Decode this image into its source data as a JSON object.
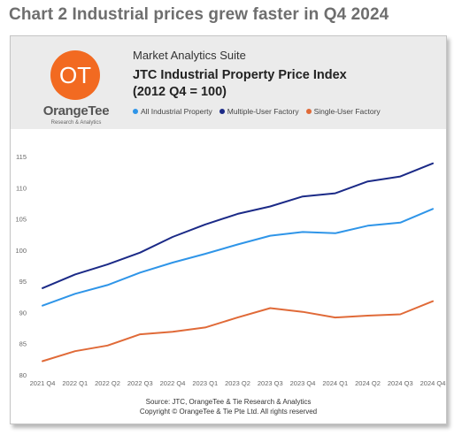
{
  "page_title": "Chart 2 Industrial prices grew faster in Q4 2024",
  "header": {
    "suite_name": "Market Analytics Suite",
    "logo": {
      "mark": "OT",
      "name": "OrangeTee",
      "tagline": "Research & Analytics"
    }
  },
  "footer": {
    "source": "Source: JTC, OrangeTee & Tie Research & Analytics",
    "copyright": "Copyright © OrangeTee & Tie Pte Ltd. All rights reserved"
  },
  "colors": {
    "accent": "#f26a21",
    "all_industrial": "#2f95e8",
    "multiple_user": "#1b2a87",
    "single_user": "#e06a38"
  },
  "chart_data": {
    "type": "line",
    "title": "JTC Industrial Property Price Index",
    "subtitle": "(2012 Q4 = 100)",
    "xlabel": "",
    "ylabel": "",
    "ylim": [
      80,
      115
    ],
    "yticks": [
      80,
      85,
      90,
      95,
      100,
      105,
      110,
      115
    ],
    "grid": false,
    "legend_position": "top",
    "categories": [
      "2021 Q4",
      "2022 Q1",
      "2022 Q2",
      "2022 Q3",
      "2022 Q4",
      "2023 Q1",
      "2023 Q2",
      "2023 Q3",
      "2023 Q4",
      "2024 Q1",
      "2024 Q2",
      "2024 Q3",
      "2024 Q4"
    ],
    "series": [
      {
        "name": "All Industrial Property",
        "color": "#2f95e8",
        "values": [
          91.1,
          93.0,
          94.4,
          96.4,
          98.0,
          99.4,
          100.9,
          102.3,
          102.9,
          102.7,
          103.9,
          104.4,
          106.6
        ]
      },
      {
        "name": "Multiple-User Factory",
        "color": "#1b2a87",
        "values": [
          93.9,
          96.1,
          97.7,
          99.6,
          102.1,
          104.1,
          105.8,
          107.0,
          108.6,
          109.1,
          111.0,
          111.8,
          113.9
        ]
      },
      {
        "name": "Single-User Factory",
        "color": "#e06a38",
        "values": [
          82.2,
          83.8,
          84.7,
          86.5,
          86.9,
          87.6,
          89.2,
          90.7,
          90.1,
          89.2,
          89.5,
          89.7,
          91.8
        ]
      }
    ]
  }
}
